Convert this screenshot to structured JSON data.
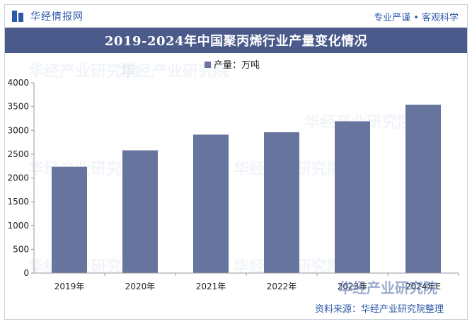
{
  "header": {
    "brand": "华经情报网",
    "tagline": "专业严谨 • 客观科学"
  },
  "chart_data": {
    "type": "bar",
    "title": "2019-2024年中国聚丙烯行业产量变化情况",
    "categories": [
      "2019年",
      "2020年",
      "2021年",
      "2022年",
      "2023年",
      "2024年E"
    ],
    "series": [
      {
        "name": "产量：万吨",
        "values": [
          2235,
          2580,
          2910,
          2960,
          3190,
          3540
        ]
      }
    ],
    "ylim": [
      0,
      4000
    ],
    "yticks": [
      0,
      500,
      1000,
      1500,
      2000,
      2500,
      3000,
      3500,
      4000
    ],
    "xlabel": "",
    "ylabel": "",
    "legend_position": "top-center",
    "grid": false,
    "bar_color": "#66749e"
  },
  "watermark": {
    "text": "华经产业研究院",
    "footer_brand": "华经产业研究院"
  },
  "footer": {
    "source": "资料来源：华经产业研究院整理"
  }
}
